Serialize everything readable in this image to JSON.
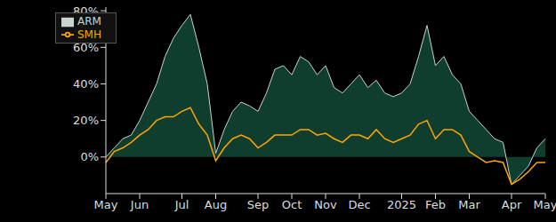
{
  "chart_data": {
    "type": "line",
    "categories": [
      "May",
      null,
      null,
      null,
      "Jun",
      null,
      null,
      null,
      null,
      "Jul",
      null,
      null,
      null,
      "Aug",
      null,
      null,
      null,
      null,
      "Sep",
      null,
      null,
      null,
      "Oct",
      null,
      null,
      null,
      "Nov",
      null,
      null,
      null,
      "Dec",
      null,
      null,
      null,
      null,
      "2025",
      null,
      null,
      null,
      "Feb",
      null,
      null,
      null,
      "Mar",
      null,
      null,
      null,
      null,
      "Apr",
      null,
      null,
      null,
      "May"
    ],
    "series": [
      {
        "name": "ARM",
        "type": "area",
        "color": "#0f3d2e",
        "values": [
          0,
          5,
          10,
          12,
          20,
          30,
          40,
          55,
          65,
          72,
          78,
          60,
          40,
          2,
          15,
          25,
          30,
          28,
          25,
          35,
          48,
          50,
          45,
          55,
          52,
          45,
          50,
          38,
          35,
          40,
          45,
          38,
          42,
          35,
          33,
          35,
          40,
          55,
          72,
          50,
          55,
          45,
          40,
          25,
          20,
          15,
          10,
          8,
          -15,
          -10,
          -5,
          5,
          10
        ]
      },
      {
        "name": "SMH",
        "type": "line",
        "color": "#ffa500",
        "values": [
          -3,
          3,
          5,
          8,
          12,
          15,
          20,
          22,
          22,
          25,
          27,
          18,
          12,
          -2,
          5,
          10,
          12,
          10,
          5,
          8,
          12,
          12,
          12,
          15,
          15,
          12,
          13,
          10,
          8,
          12,
          12,
          10,
          15,
          10,
          8,
          10,
          12,
          18,
          20,
          10,
          15,
          15,
          12,
          3,
          0,
          -3,
          -2,
          -3,
          -15,
          -12,
          -8,
          -3,
          -3
        ]
      }
    ],
    "ylim": [
      -20,
      82
    ],
    "yticks": [
      {
        "value": 0,
        "label": "0%"
      },
      {
        "value": 20,
        "label": "20%"
      },
      {
        "value": 40,
        "label": "40%"
      },
      {
        "value": 60,
        "label": "60%"
      },
      {
        "value": 80,
        "label": "80%"
      }
    ],
    "grid": false,
    "legend": "upper left"
  }
}
